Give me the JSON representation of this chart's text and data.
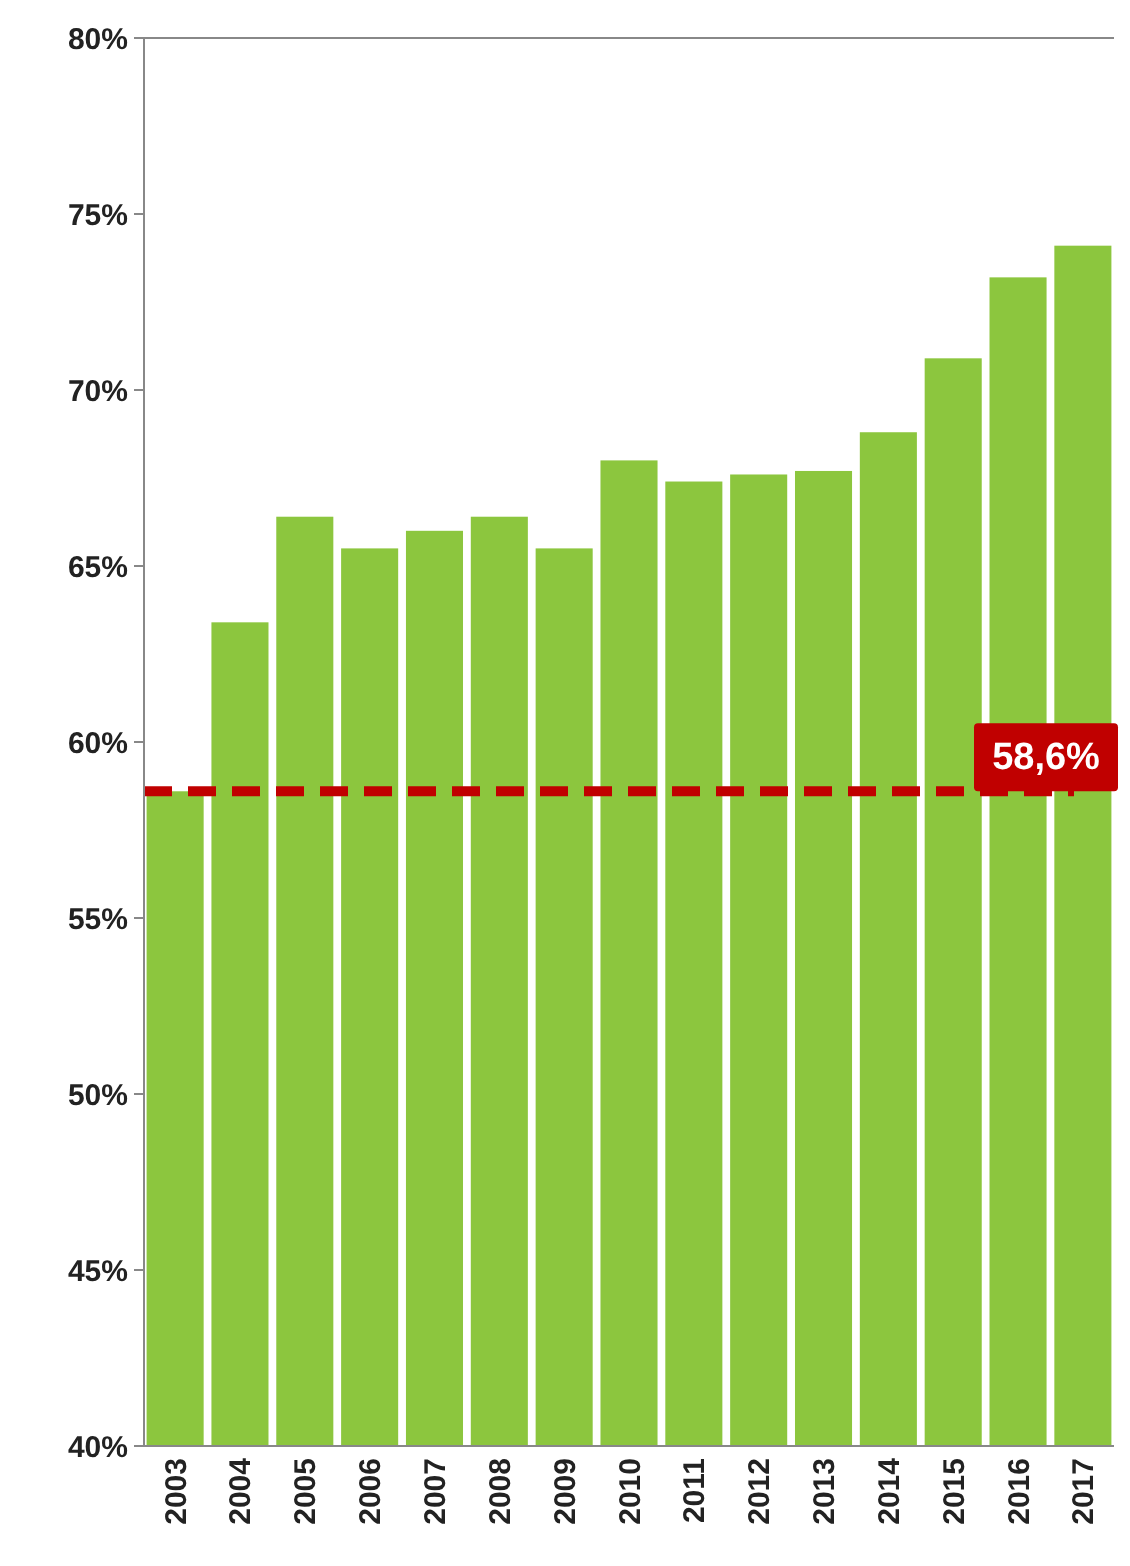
{
  "chart_data": {
    "type": "bar",
    "categories": [
      "2003",
      "2004",
      "2005",
      "2006",
      "2007",
      "2008",
      "2009",
      "2010",
      "2011",
      "2012",
      "2013",
      "2014",
      "2015",
      "2016",
      "2017"
    ],
    "values": [
      58.6,
      63.4,
      66.4,
      65.5,
      66.0,
      66.4,
      65.5,
      68.0,
      67.4,
      67.6,
      67.7,
      68.8,
      70.9,
      73.2,
      74.1
    ],
    "color": "#8cc63e",
    "ylim": [
      40,
      80
    ],
    "yticks": [
      {
        "value": 40,
        "label": "40%"
      },
      {
        "value": 45,
        "label": "45%"
      },
      {
        "value": 50,
        "label": "50%"
      },
      {
        "value": 55,
        "label": "55%"
      },
      {
        "value": 60,
        "label": "60%"
      },
      {
        "value": 65,
        "label": "65%"
      },
      {
        "value": 70,
        "label": "70%"
      },
      {
        "value": 75,
        "label": "75%"
      },
      {
        "value": 80,
        "label": "80%"
      }
    ],
    "ref_lines": [
      {
        "axis": "y",
        "value": 58.6,
        "label": "58,6%",
        "color": "#c00000",
        "line_style": "dashed"
      }
    ]
  }
}
